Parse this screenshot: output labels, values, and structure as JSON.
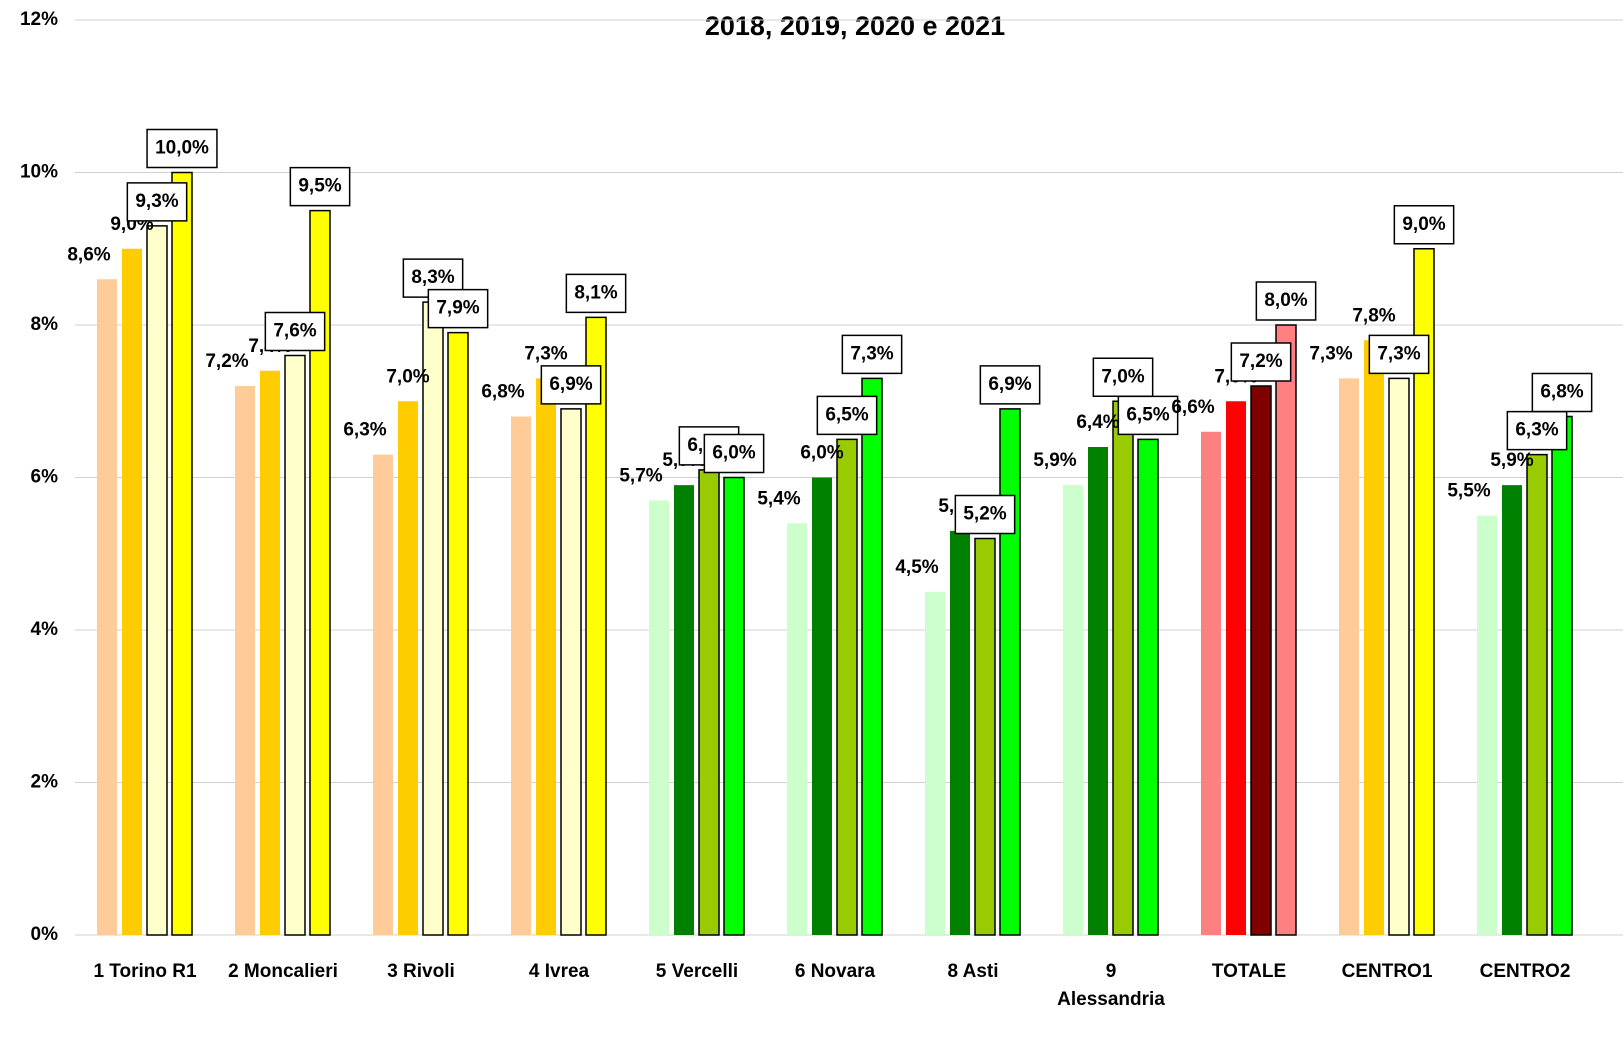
{
  "chart_data": {
    "type": "bar",
    "title": "2018, 2019, 2020 e 2021",
    "categories": [
      "1 Torino R1",
      "2 Moncalieri",
      "3 Rivoli",
      "4 Ivrea",
      "5 Vercelli",
      "6 Novara",
      "8 Asti",
      "9\nAlessandria",
      "TOTALE",
      "CENTRO1",
      "CENTRO2"
    ],
    "series": [
      {
        "colors": [
          "#FFCC99",
          "#FFCC99",
          "#FFCC99",
          "#FFCC99",
          "#CCFFCC",
          "#CCFFCC",
          "#CCFFCC",
          "#CCFFCC",
          "#FF8080",
          "#FFCC99",
          "#CCFFCC"
        ],
        "values": [
          8.6,
          7.2,
          6.3,
          6.8,
          5.7,
          5.4,
          4.5,
          5.9,
          6.6,
          7.3,
          5.5
        ],
        "value_labels": [
          "8,6%",
          "7,2%",
          "6,3%",
          "6,8%",
          "5,7%",
          "5,4%",
          "4,5%",
          "5,9%",
          "6,6%",
          "7,3%",
          "5,5%"
        ]
      },
      {
        "colors": [
          "#FFCC00",
          "#FFCC00",
          "#FFCC00",
          "#FFCC00",
          "#008000",
          "#008000",
          "#008000",
          "#008000",
          "#FF0000",
          "#FFCC00",
          "#008000"
        ],
        "values": [
          9.0,
          7.4,
          7.0,
          7.3,
          5.9,
          6.0,
          5.3,
          6.4,
          7.0,
          7.8,
          5.9
        ],
        "value_labels": [
          "9,0%",
          "7,4%",
          "7,0%",
          "7,3%",
          "5,9%",
          "6,0%",
          "5,3%",
          "6,4%",
          "7,0%",
          "7,8%",
          "5,9%"
        ]
      },
      {
        "colors": [
          "#FFFFCC",
          "#FFFFCC",
          "#FFFFCC",
          "#FFFFCC",
          "#99CC00",
          "#99CC00",
          "#99CC00",
          "#99CC00",
          "#800000",
          "#FFFFCC",
          "#99CC00"
        ],
        "values": [
          9.3,
          7.6,
          8.3,
          6.9,
          6.1,
          6.5,
          5.2,
          7.0,
          7.2,
          7.3,
          6.3
        ],
        "value_labels": [
          "9,3%",
          "7,6%",
          "8,3%",
          "6,9%",
          "6,1%",
          "6,5%",
          "5,2%",
          "7,0%",
          "7,2%",
          "7,3%",
          "6,3%"
        ]
      },
      {
        "colors": [
          "#FFFF00",
          "#FFFF00",
          "#FFFF00",
          "#FFFF00",
          "#00FF00",
          "#00FF00",
          "#00FF00",
          "#00FF00",
          "#FF8080",
          "#FFFF00",
          "#00FF00"
        ],
        "values": [
          10.0,
          9.5,
          7.9,
          8.1,
          6.0,
          7.3,
          6.9,
          6.5,
          8.0,
          9.0,
          6.8
        ],
        "value_labels": [
          "10,0%",
          "9,5%",
          "7,9%",
          "8,1%",
          "6,0%",
          "7,3%",
          "6,9%",
          "6,5%",
          "8,0%",
          "9,0%",
          "6,8%"
        ]
      }
    ],
    "ylim": [
      0,
      12
    ],
    "yticks": [
      {
        "value": 0,
        "label": "0%"
      },
      {
        "value": 2,
        "label": "2%"
      },
      {
        "value": 4,
        "label": "4%"
      },
      {
        "value": 6,
        "label": "6%"
      },
      {
        "value": 8,
        "label": "8%"
      },
      {
        "value": 10,
        "label": "10%"
      },
      {
        "value": 12,
        "label": "12%"
      }
    ],
    "grid": true
  }
}
